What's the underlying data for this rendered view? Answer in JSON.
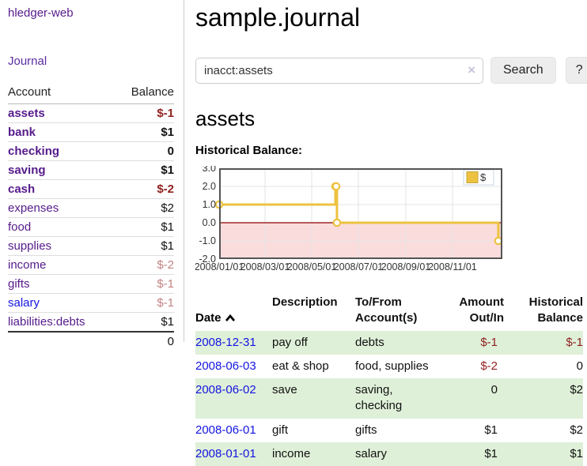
{
  "sidebar": {
    "brand": "hledger-web",
    "journal_label": "Journal",
    "accounts_table": {
      "account_header": "Account",
      "balance_header": "Balance",
      "rows": [
        {
          "name": "assets",
          "balance": "$-1",
          "depth": 0,
          "bold": true,
          "balance_class": "neg-strong",
          "link_class": ""
        },
        {
          "name": "bank",
          "balance": "$1",
          "depth": 1,
          "bold": true,
          "balance_class": "",
          "link_class": ""
        },
        {
          "name": "checking",
          "balance": "0",
          "depth": 2,
          "bold": true,
          "balance_class": "",
          "link_class": ""
        },
        {
          "name": "saving",
          "balance": "$1",
          "depth": 2,
          "bold": true,
          "balance_class": "",
          "link_class": ""
        },
        {
          "name": "cash",
          "balance": "$-2",
          "depth": 1,
          "bold": true,
          "balance_class": "neg-strong",
          "link_class": ""
        },
        {
          "name": "expenses",
          "balance": "$2",
          "depth": 0,
          "bold": false,
          "balance_class": "",
          "link_class": ""
        },
        {
          "name": "food",
          "balance": "$1",
          "depth": 1,
          "bold": false,
          "balance_class": "",
          "link_class": ""
        },
        {
          "name": "supplies",
          "balance": "$1",
          "depth": 1,
          "bold": false,
          "balance_class": "",
          "link_class": ""
        },
        {
          "name": "income",
          "balance": "$-2",
          "depth": 0,
          "bold": false,
          "balance_class": "neg-soft",
          "link_class": ""
        },
        {
          "name": "gifts",
          "balance": "$-1",
          "depth": 1,
          "bold": false,
          "balance_class": "neg-soft",
          "link_class": ""
        },
        {
          "name": "salary",
          "balance": "$-1",
          "depth": 1,
          "bold": false,
          "balance_class": "neg-soft",
          "link_class": "blue"
        },
        {
          "name": "liabilities:debts",
          "balance": "$1",
          "depth": 0,
          "bold": false,
          "balance_class": "",
          "link_class": ""
        }
      ],
      "total": "0"
    }
  },
  "main": {
    "title": "sample.journal",
    "search": {
      "value": "inacct:assets",
      "placeholder": "",
      "clear_icon": "×",
      "button_label": "Search",
      "help_label": "?"
    },
    "account_heading": "assets",
    "chart_label": "Historical Balance:"
  },
  "chart_data": {
    "type": "line",
    "step": true,
    "title": "Historical Balance:",
    "series": [
      {
        "name": "$",
        "color": "#edc240",
        "points": [
          [
            "2008-01-01",
            1.0
          ],
          [
            "2008-06-01",
            2.0
          ],
          [
            "2008-06-02",
            2.0
          ],
          [
            "2008-06-03",
            0.0
          ],
          [
            "2008-12-31",
            -1.0
          ]
        ]
      }
    ],
    "xticks": [
      "2008/01/01",
      "2008/03/01",
      "2008/05/01",
      "2008/07/01",
      "2008/09/01",
      "2008/11/01"
    ],
    "yticks": [
      "3.0",
      "2.0",
      "1.0",
      "0.0",
      "-1.0",
      "-2.0"
    ],
    "ylim": [
      -2.0,
      3.0
    ],
    "x_start": "2008-01-01",
    "grid": true,
    "legend": {
      "position": "top-right",
      "entries": [
        "$"
      ]
    },
    "negative_region_fill": "#fbdcdc",
    "zero_line_color": "#8b0000",
    "plot_border_color": "#545454"
  },
  "register_table": {
    "headers": {
      "date": "Date",
      "sort_icon": "chevron-up-icon",
      "description": "Description",
      "tofrom": "To/From\nAccount(s)",
      "amount": "Amount\nOut/In",
      "balance": "Historical\nBalance"
    },
    "rows": [
      {
        "date": "2008-12-31",
        "description": "pay off",
        "accounts": "debts",
        "amount": "$-1",
        "amount_class": "neg-strong",
        "balance": "$-1",
        "balance_class": "neg-strong",
        "striped": true
      },
      {
        "date": "2008-06-03",
        "description": "eat & shop",
        "accounts": "food, supplies",
        "amount": "$-2",
        "amount_class": "neg-strong",
        "balance": "0",
        "balance_class": "",
        "striped": false
      },
      {
        "date": "2008-06-02",
        "description": "save",
        "accounts": "saving, checking",
        "amount": "0",
        "amount_class": "",
        "balance": "$2",
        "balance_class": "",
        "striped": true
      },
      {
        "date": "2008-06-01",
        "description": "gift",
        "accounts": "gifts",
        "amount": "$1",
        "amount_class": "",
        "balance": "$2",
        "balance_class": "",
        "striped": false
      },
      {
        "date": "2008-01-01",
        "description": "income",
        "accounts": "salary",
        "amount": "$1",
        "amount_class": "",
        "balance": "$1",
        "balance_class": "",
        "striped": true
      }
    ]
  },
  "colors": {
    "link_purple": "#551a8b",
    "link_blue": "#1414e0",
    "negative_strong": "#8f1f1f",
    "negative_soft": "#c28484",
    "row_green": "#dff0d8",
    "chart_series_yellow": "#edc240",
    "chart_negative_fill": "#fbdcdc",
    "chart_zero_line": "#8b0000"
  }
}
